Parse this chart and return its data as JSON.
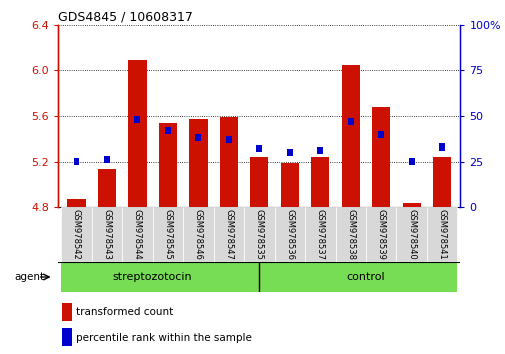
{
  "title": "GDS4845 / 10608317",
  "samples": [
    "GSM978542",
    "GSM978543",
    "GSM978544",
    "GSM978545",
    "GSM978546",
    "GSM978547",
    "GSM978535",
    "GSM978536",
    "GSM978537",
    "GSM978538",
    "GSM978539",
    "GSM978540",
    "GSM978541"
  ],
  "red_values": [
    4.87,
    5.13,
    6.09,
    5.54,
    5.57,
    5.59,
    5.24,
    5.19,
    5.24,
    6.05,
    5.68,
    4.84,
    5.24
  ],
  "blue_values": [
    25,
    26,
    48,
    42,
    38,
    37,
    32,
    30,
    31,
    47,
    40,
    25,
    33
  ],
  "ymin": 4.8,
  "ymax": 6.4,
  "y2min": 0,
  "y2max": 100,
  "yticks": [
    4.8,
    5.2,
    5.6,
    6.0,
    6.4
  ],
  "y2ticks": [
    0,
    25,
    50,
    75,
    100
  ],
  "red_color": "#cc1100",
  "blue_color": "#0000cc",
  "bar_bottom": 4.8,
  "agent_label": "agent",
  "legend1": "transformed count",
  "legend2": "percentile rank within the sample",
  "green_color": "#77dd55",
  "cell_bg": "#d8d8d8",
  "plot_bg": "#ffffff",
  "fig_bg": "#ffffff"
}
